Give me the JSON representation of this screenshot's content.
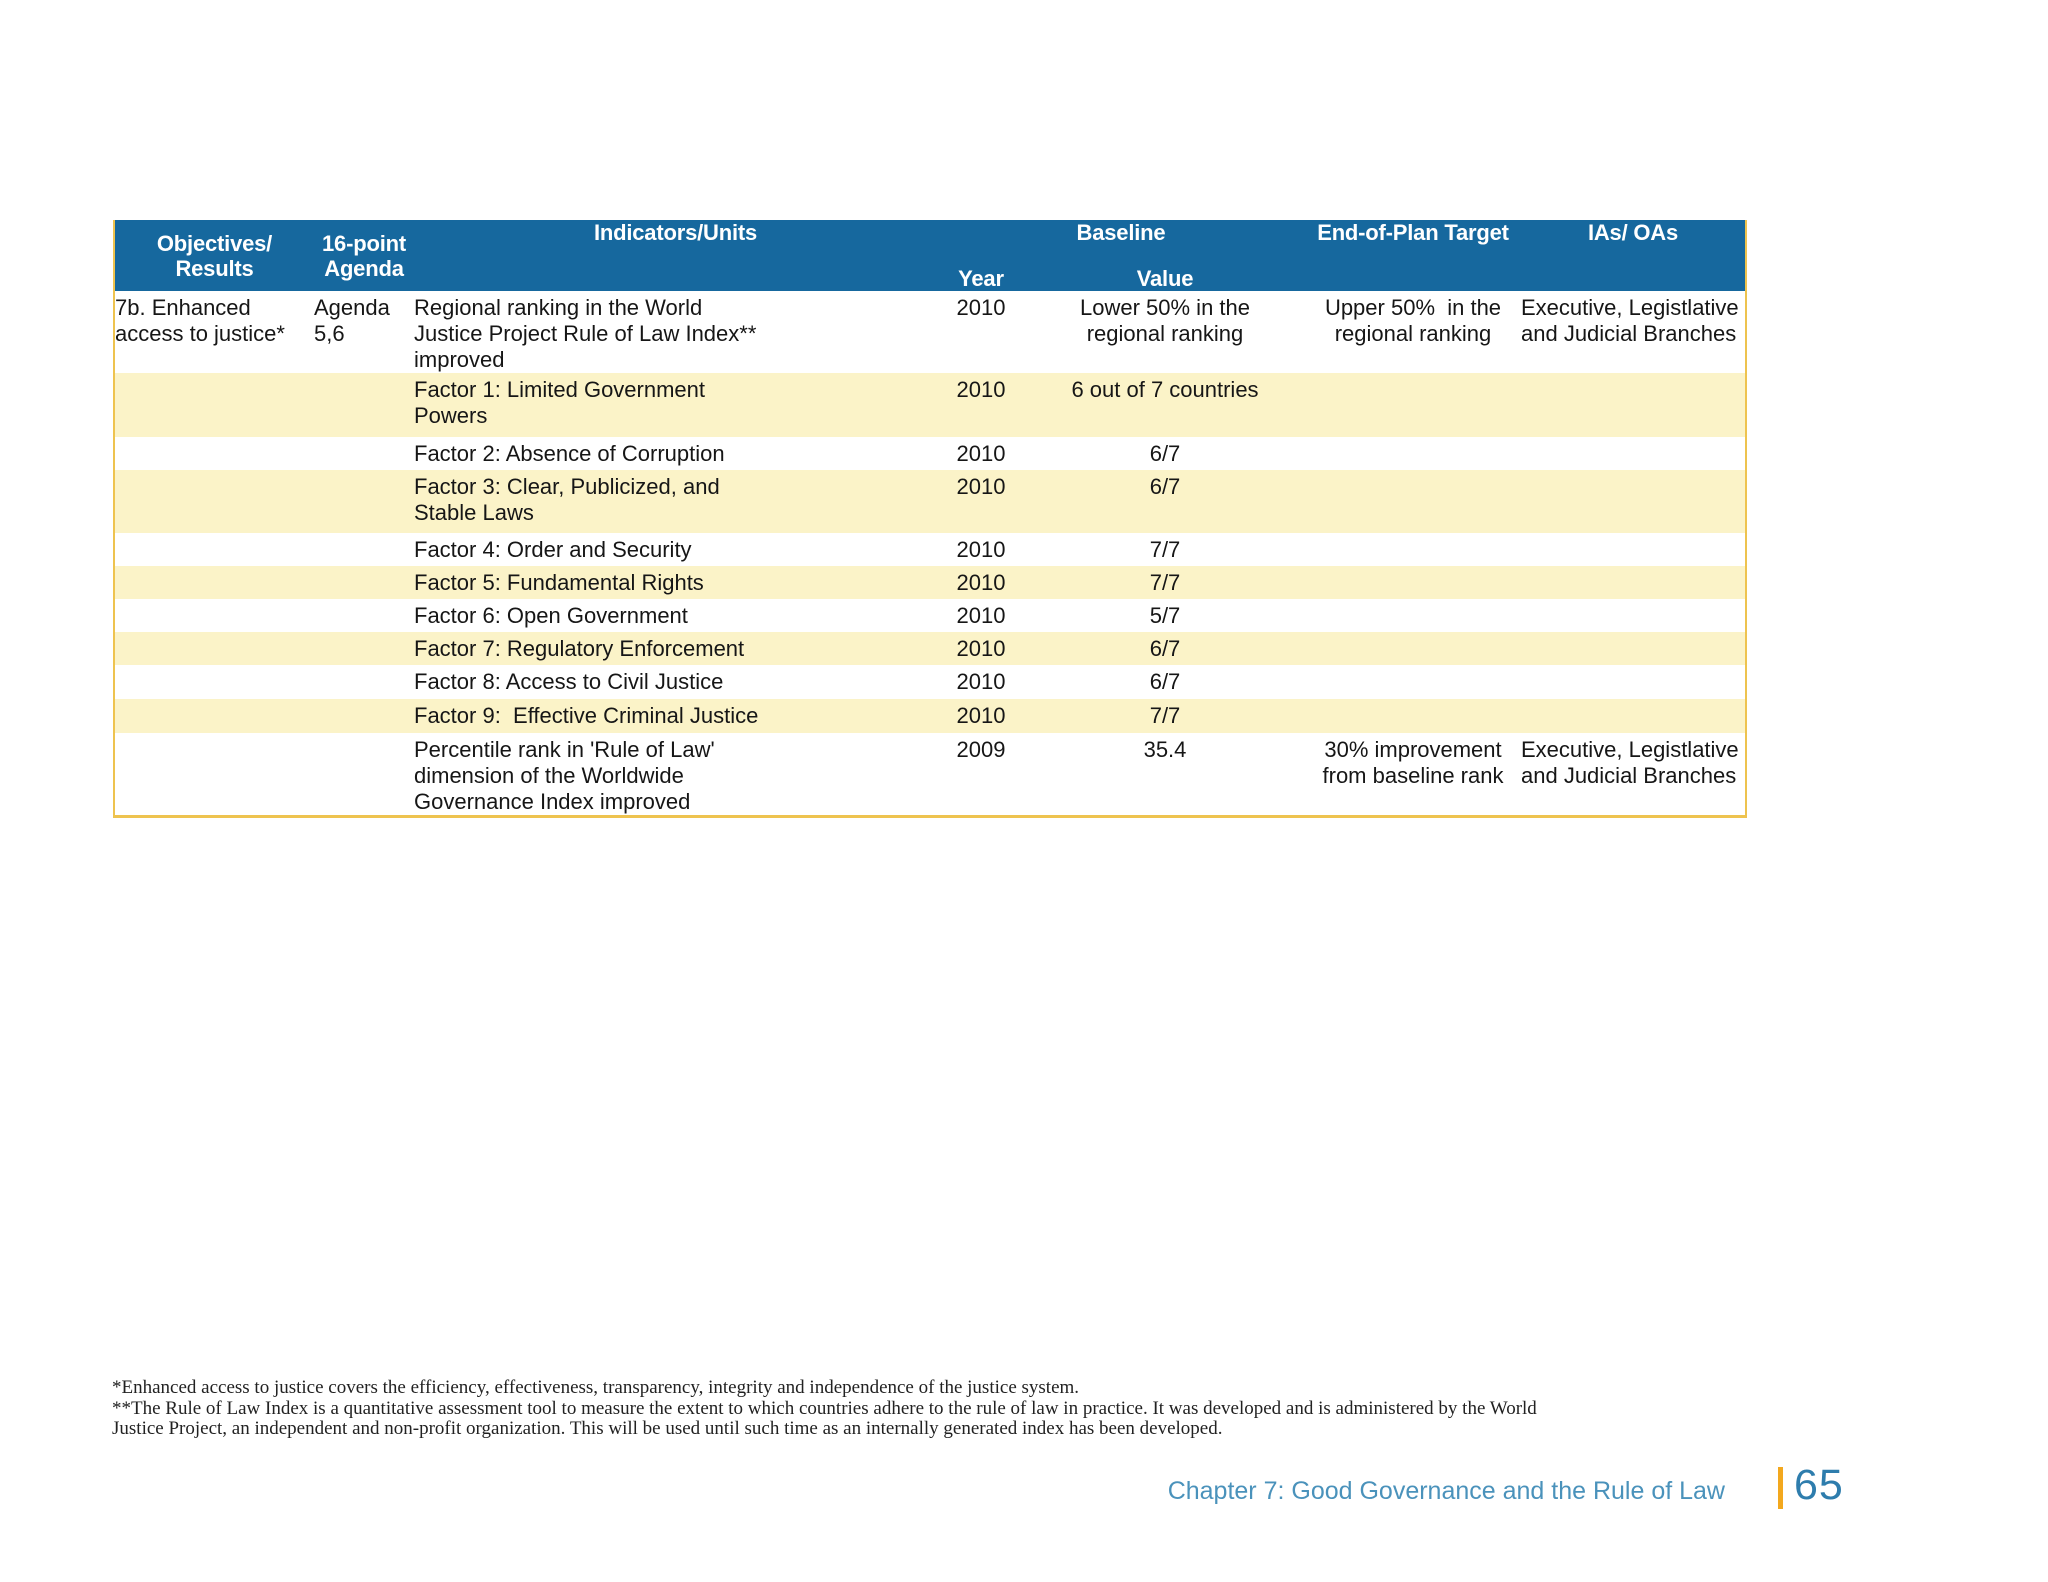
{
  "colors": {
    "header_blue": "#16689e",
    "row_highlight_yellow": "#fbf3c8",
    "table_border_gold": "#eec34f",
    "footer_text_blue": "#4a92bb",
    "page_number_blue": "#2e7dad",
    "divider_orange": "#f3a81e"
  },
  "table": {
    "headers": {
      "objectives": [
        "Objectives/",
        "Results"
      ],
      "agenda": [
        "16-point",
        "Agenda"
      ],
      "indicators": "Indicators/Units",
      "baseline": "Baseline",
      "year": "Year",
      "value": "Value",
      "target": "End-of-Plan Target",
      "ias": "IAs/ OAs"
    },
    "rows": [
      {
        "objective": [
          "7b. Enhanced",
          "access to justice*"
        ],
        "agenda": [
          "Agenda",
          "5,6"
        ],
        "indicator": [
          "Regional ranking in the World",
          "Justice Project Rule of Law Index**",
          "improved"
        ],
        "year": "2010",
        "value": [
          "Lower 50% in the",
          "regional ranking"
        ],
        "target": [
          "Upper 50%  in the",
          "regional ranking"
        ],
        "ias": [
          "Executive, Legistlative",
          "and Judicial Branches"
        ]
      },
      {
        "indicator": [
          "Factor 1: Limited Government",
          "Powers"
        ],
        "year": "2010",
        "value": [
          "6 out of 7 countries"
        ]
      },
      {
        "indicator": [
          "Factor 2: Absence of Corruption"
        ],
        "year": "2010",
        "value": [
          "6/7"
        ]
      },
      {
        "indicator": [
          "Factor 3: Clear, Publicized, and",
          "Stable Laws"
        ],
        "year": "2010",
        "value": [
          "6/7"
        ]
      },
      {
        "indicator": [
          "Factor 4: Order and Security"
        ],
        "year": "2010",
        "value": [
          "7/7"
        ]
      },
      {
        "indicator": [
          "Factor 5: Fundamental Rights"
        ],
        "year": "2010",
        "value": [
          "7/7"
        ]
      },
      {
        "indicator": [
          "Factor 6: Open Government"
        ],
        "year": "2010",
        "value": [
          "5/7"
        ]
      },
      {
        "indicator": [
          "Factor 7: Regulatory Enforcement"
        ],
        "year": "2010",
        "value": [
          "6/7"
        ]
      },
      {
        "indicator": [
          "Factor 8: Access to Civil Justice"
        ],
        "year": "2010",
        "value": [
          "6/7"
        ]
      },
      {
        "indicator": [
          "Factor 9:  Effective Criminal Justice"
        ],
        "year": "2010",
        "value": [
          "7/7"
        ]
      },
      {
        "indicator": [
          "Percentile rank in 'Rule of Law'",
          "dimension of the Worldwide",
          "Governance Index improved"
        ],
        "year": "2009",
        "value": [
          "35.4"
        ],
        "target": [
          "30% improvement",
          "from baseline rank"
        ],
        "ias": [
          "Executive, Legistlative",
          "and Judicial Branches"
        ]
      }
    ]
  },
  "footnotes": [
    "*Enhanced access to justice covers the efficiency, effectiveness, transparency, integrity and independence of the justice system.",
    "**The Rule of Law Index is a quantitative assessment tool to measure the extent to which countries adhere to the rule of law in practice. It was developed and is administered by the World",
    "Justice Project, an independent and non-profit organization. This will be used until such time as an internally generated index has been developed."
  ],
  "footer": {
    "chapter": "Chapter 7: Good Governance and the Rule of Law",
    "page_number": "65"
  }
}
